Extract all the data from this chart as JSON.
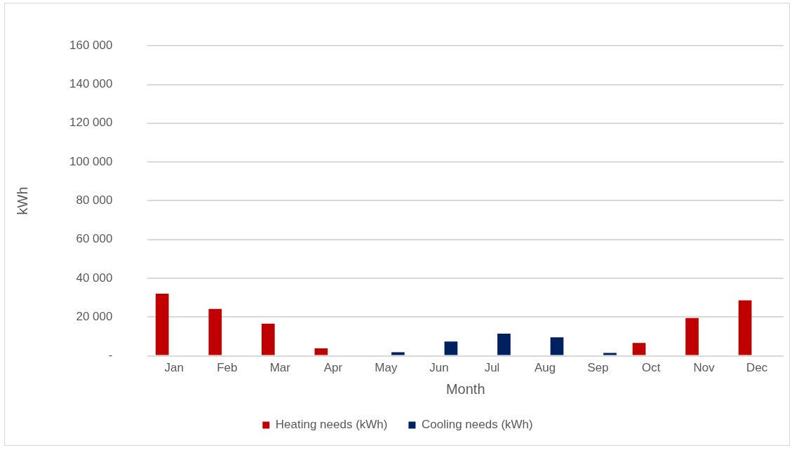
{
  "chart_data": {
    "type": "bar",
    "xlabel": "Month",
    "ylabel": "kWh",
    "categories": [
      "Jan",
      "Feb",
      "Mar",
      "Apr",
      "May",
      "Jun",
      "Jul",
      "Aug",
      "Sep",
      "Oct",
      "Nov",
      "Dec"
    ],
    "series": [
      {
        "name": "Heating needs (kWh)",
        "color": "#c00000",
        "values": [
          32000,
          24200,
          16600,
          3800,
          null,
          null,
          null,
          null,
          null,
          6600,
          19500,
          28600
        ]
      },
      {
        "name": "Cooling needs (kWh)",
        "color": "#002060",
        "values": [
          null,
          null,
          null,
          null,
          1800,
          7400,
          11400,
          9500,
          1500,
          null,
          null,
          null
        ]
      }
    ],
    "ylim": [
      0,
      160000
    ],
    "yticks": [
      {
        "value": 0,
        "label": "-"
      },
      {
        "value": 20000,
        "label": "20 000"
      },
      {
        "value": 40000,
        "label": "40 000"
      },
      {
        "value": 60000,
        "label": "60 000"
      },
      {
        "value": 80000,
        "label": "80 000"
      },
      {
        "value": 100000,
        "label": "100 000"
      },
      {
        "value": 120000,
        "label": "120 000"
      },
      {
        "value": 140000,
        "label": "140 000"
      },
      {
        "value": 160000,
        "label": "160 000"
      }
    ],
    "grid": "y",
    "legend": "bottom"
  }
}
